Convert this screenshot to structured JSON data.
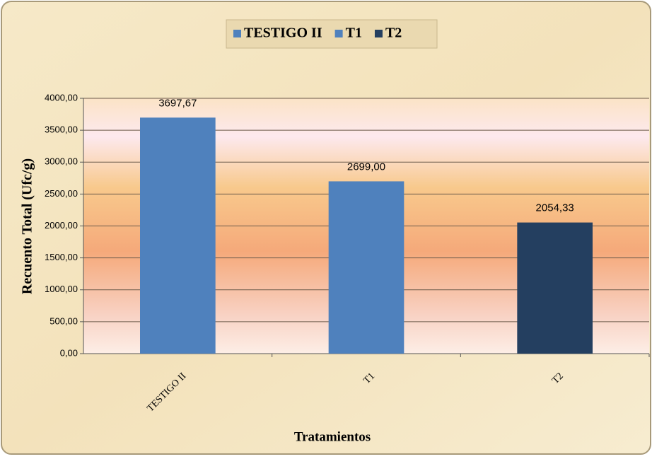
{
  "chart_data": {
    "type": "bar",
    "categories": [
      "TESTIGO II",
      "T1",
      "T2"
    ],
    "series": [
      {
        "name": "TESTIGO II",
        "color": "#4f81bd",
        "values": [
          3697.67,
          null,
          null
        ],
        "value_labels": [
          "3697,67",
          null,
          null
        ]
      },
      {
        "name": "T1",
        "color": "#4f81bd",
        "values": [
          null,
          2699,
          null
        ],
        "value_labels": [
          null,
          "2699,00",
          null
        ]
      },
      {
        "name": "T2",
        "color": "#243f60",
        "values": [
          null,
          null,
          2054.33
        ],
        "value_labels": [
          null,
          null,
          "2054,33"
        ]
      }
    ],
    "y_label": "Recuento Total (Ufc/g)",
    "x_label": "Tratamientos",
    "ylim": [
      0,
      4000
    ],
    "yticks": [
      {
        "value": 0,
        "label": "0,00"
      },
      {
        "value": 500,
        "label": "500,00"
      },
      {
        "value": 1000,
        "label": "1000,00"
      },
      {
        "value": 1500,
        "label": "1500,00"
      },
      {
        "value": 2000,
        "label": "2000,00"
      },
      {
        "value": 2500,
        "label": "2500,00"
      },
      {
        "value": 3000,
        "label": "3000,00"
      },
      {
        "value": 3500,
        "label": "3500,00"
      },
      {
        "value": 4000,
        "label": "4000,00"
      }
    ],
    "grid": true,
    "legend": "top"
  }
}
